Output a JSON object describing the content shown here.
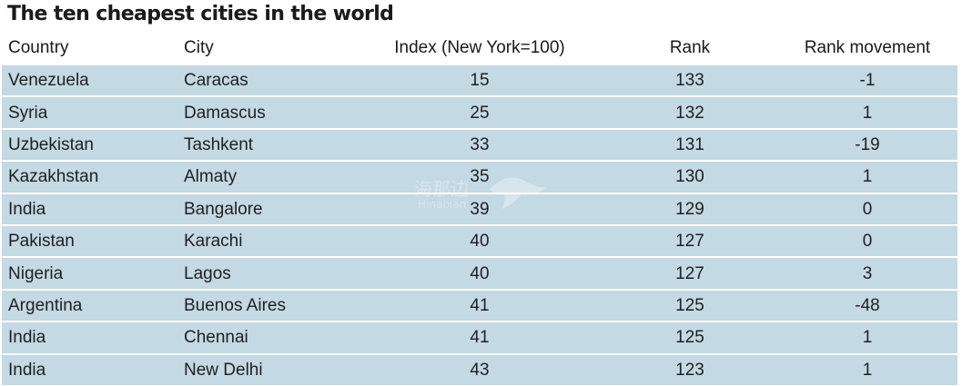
{
  "title": "The ten cheapest cities in the world",
  "chart_data": {
    "type": "table",
    "title": "The ten cheapest cities in the world",
    "columns": [
      "Country",
      "City",
      "Index (New York=100)",
      "Rank",
      "Rank movement"
    ],
    "rows": [
      [
        "Venezuela",
        "Caracas",
        "15",
        "133",
        "-1"
      ],
      [
        "Syria",
        "Damascus",
        "25",
        "132",
        "1"
      ],
      [
        "Uzbekistan",
        "Tashkent",
        "33",
        "131",
        "-19"
      ],
      [
        "Kazakhstan",
        "Almaty",
        "35",
        "130",
        "1"
      ],
      [
        "India",
        "Bangalore",
        "39",
        "129",
        "0"
      ],
      [
        "Pakistan",
        "Karachi",
        "40",
        "127",
        "0"
      ],
      [
        "Nigeria",
        "Lagos",
        "40",
        "127",
        "3"
      ],
      [
        "Argentina",
        "Buenos Aires",
        "41",
        "125",
        "-48"
      ],
      [
        "India",
        "Chennai",
        "41",
        "125",
        "1"
      ],
      [
        "India",
        "New Delhi",
        "43",
        "123",
        "1"
      ]
    ],
    "row_color": "#c3d9e3"
  },
  "watermark": {
    "text_cn": "海那边",
    "text_en": "Hinabian"
  }
}
